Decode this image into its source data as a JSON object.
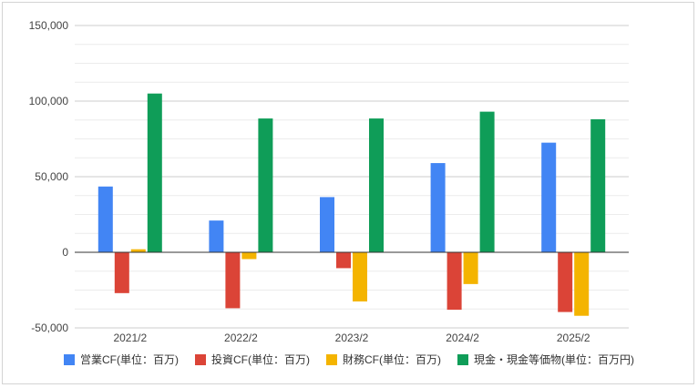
{
  "chart_data": {
    "type": "bar",
    "title": "",
    "xlabel": "",
    "ylabel": "",
    "categories": [
      "2021/2",
      "2022/2",
      "2023/2",
      "2024/2",
      "2025/2"
    ],
    "ylim": [
      -50000,
      150000
    ],
    "yticks": [
      -50000,
      0,
      50000,
      100000,
      150000
    ],
    "ytick_labels": [
      "-50,000",
      "0",
      "50,000",
      "100,000",
      "150,000"
    ],
    "minor_gridlines": true,
    "legend_position": "bottom",
    "series": [
      {
        "name": "営業CF(単位：百万)",
        "color": "#4285f4",
        "values": [
          43500,
          21000,
          36500,
          59000,
          72500
        ]
      },
      {
        "name": "投資CF(単位：百万)",
        "color": "#db4437",
        "values": [
          -27000,
          -37000,
          -10500,
          -38000,
          -39500
        ]
      },
      {
        "name": "財務CF(単位：百万)",
        "color": "#f4b400",
        "values": [
          2000,
          -4500,
          -32500,
          -21000,
          -42000
        ]
      },
      {
        "name": "現金・現金等価物(単位：百万円)",
        "color": "#0f9d58",
        "values": [
          105000,
          88500,
          88500,
          93000,
          88000
        ]
      }
    ]
  }
}
